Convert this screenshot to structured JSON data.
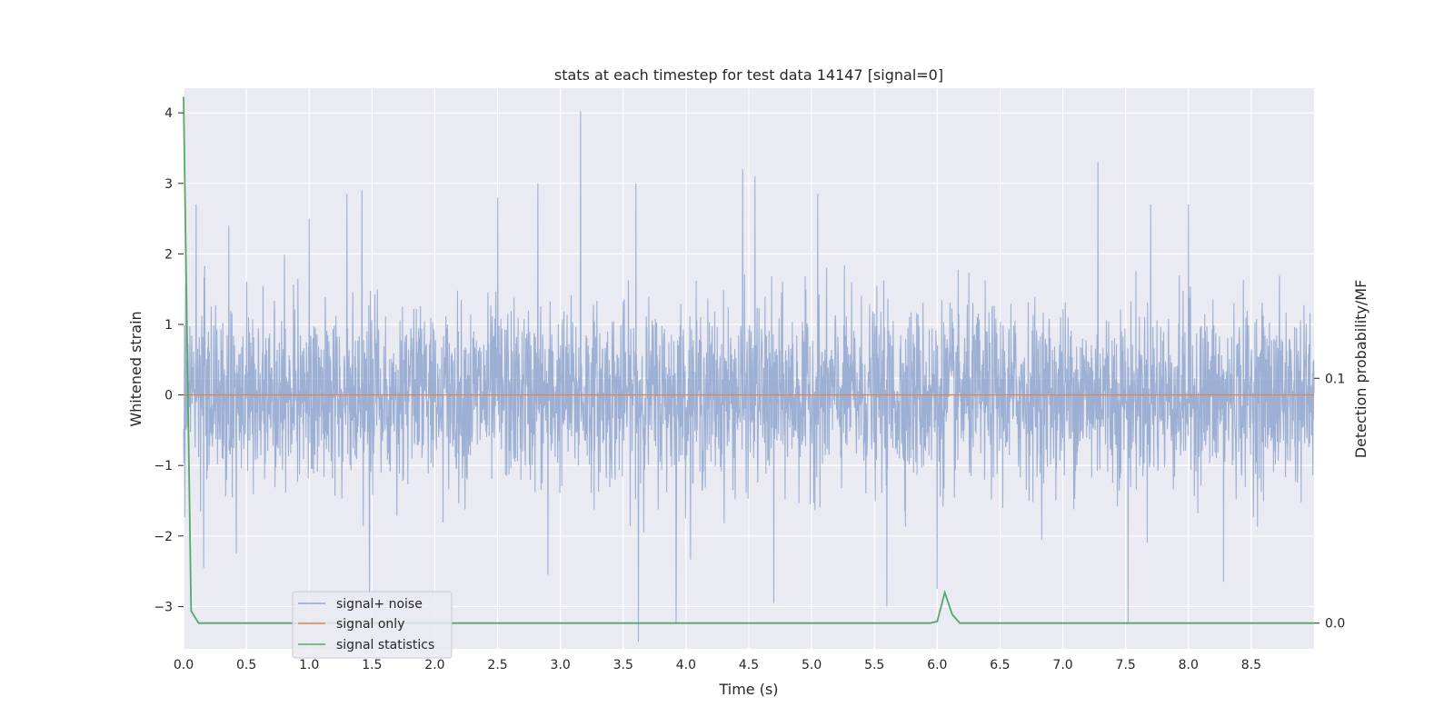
{
  "chart_data": {
    "type": "line",
    "title": "stats at each timestep for test data 14147 [signal=0]",
    "xlabel": "Time (s)",
    "ylabel": "Whitened strain",
    "y2label": "Detection probability/MF",
    "xlim": [
      0.0,
      9.0
    ],
    "ylim": [
      -3.6,
      4.35
    ],
    "y2lim": [
      -0.0105,
      0.2185
    ],
    "x_ticks": [
      0.0,
      0.5,
      1.0,
      1.5,
      2.0,
      2.5,
      3.0,
      3.5,
      4.0,
      4.5,
      5.0,
      5.5,
      6.0,
      6.5,
      7.0,
      7.5,
      8.0,
      8.5
    ],
    "x_tick_labels": [
      "0.0",
      "0.5",
      "1.0",
      "1.5",
      "2.0",
      "2.5",
      "3.0",
      "3.5",
      "4.0",
      "4.5",
      "5.0",
      "5.5",
      "6.0",
      "6.5",
      "7.0",
      "7.5",
      "8.0",
      "8.5"
    ],
    "y_ticks": [
      -3,
      -2,
      -1,
      0,
      1,
      2,
      3,
      4
    ],
    "y_tick_labels": [
      "−3",
      "−2",
      "−1",
      "0",
      "1",
      "2",
      "3",
      "4"
    ],
    "y2_ticks": [
      0.0,
      0.1
    ],
    "y2_tick_labels": [
      "0.0",
      "0.1"
    ],
    "grid": true,
    "legend_position": "lower-left",
    "colors": {
      "background": "#eaeaf2",
      "grid": "#ffffff",
      "noise": "#8fa6cf",
      "signal": "#dd8452",
      "stats": "#55a868"
    },
    "series": [
      {
        "name": "signal+ noise",
        "axis": "left",
        "description_points": {
          "duration": 9.0,
          "envelope": 1.4,
          "peaks": [
            [
              0.1,
              2.7
            ],
            [
              0.36,
              2.4
            ],
            [
              1.0,
              2.5
            ],
            [
              1.3,
              2.85
            ],
            [
              1.42,
              2.9
            ],
            [
              2.5,
              2.8
            ],
            [
              2.82,
              3.0
            ],
            [
              3.16,
              4.02
            ],
            [
              3.6,
              3.0
            ],
            [
              4.45,
              3.2
            ],
            [
              4.55,
              3.1
            ],
            [
              5.05,
              2.85
            ],
            [
              7.28,
              3.3
            ],
            [
              7.7,
              2.7
            ],
            [
              8.0,
              2.7
            ]
          ],
          "troughs": [
            [
              0.16,
              -2.45
            ],
            [
              0.42,
              -2.25
            ],
            [
              1.48,
              -2.85
            ],
            [
              2.9,
              -2.55
            ],
            [
              3.62,
              -3.5
            ],
            [
              3.92,
              -3.25
            ],
            [
              4.7,
              -2.95
            ],
            [
              5.6,
              -3.0
            ],
            [
              6.0,
              -2.75
            ],
            [
              7.52,
              -3.25
            ],
            [
              8.28,
              -2.65
            ]
          ]
        }
      },
      {
        "name": "signal only",
        "axis": "left",
        "x": [
          0.0,
          9.0
        ],
        "values": [
          0.0,
          0.0
        ]
      },
      {
        "name": "signal statistics",
        "axis": "right",
        "x": [
          0.0,
          0.06,
          0.12,
          5.94,
          6.0,
          6.06,
          6.12,
          6.18,
          9.0
        ],
        "values": [
          0.215,
          0.005,
          0.0,
          0.0,
          0.0007,
          0.0125,
          0.0035,
          0.0,
          0.0
        ]
      }
    ]
  }
}
